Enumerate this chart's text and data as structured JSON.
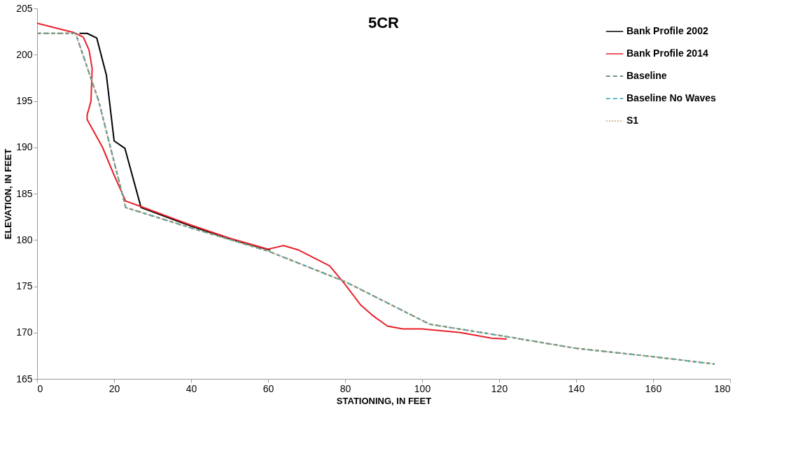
{
  "chart_data": {
    "type": "line",
    "title": "5CR",
    "xlabel": "STATIONING, IN FEET",
    "ylabel": "ELEVATION, IN FEET",
    "xlim": [
      0,
      180
    ],
    "xticks": [
      0,
      20,
      40,
      60,
      80,
      100,
      120,
      140,
      160,
      180
    ],
    "ylim": [
      165,
      205
    ],
    "yticks": [
      165,
      170,
      175,
      180,
      185,
      190,
      195,
      200,
      205
    ],
    "grid": false,
    "legend": "top right",
    "marker": "none",
    "series": [
      {
        "name": "Bank Profile 2002",
        "color": "#000000",
        "line_style": "solid",
        "x": [
          11,
          13,
          15.5,
          18,
          20,
          22.8,
          27,
          40,
          50,
          60.5
        ],
        "values": [
          202.3,
          202.3,
          201.8,
          197.8,
          190.7,
          189.9,
          183.5,
          181.5,
          180.1,
          178.9
        ]
      },
      {
        "name": "Bank Profile 2014",
        "color": "#e8202a",
        "line_style": "solid",
        "x": [
          0,
          9.5,
          12,
          13.5,
          14.3,
          14,
          13,
          13,
          17,
          20,
          23,
          27,
          40,
          50,
          60,
          62,
          64,
          68,
          76,
          80,
          84,
          87,
          91,
          95,
          100,
          110,
          118,
          122
        ],
        "values": [
          203.4,
          202.4,
          201.9,
          200.5,
          198.5,
          195,
          193.5,
          193,
          190,
          187,
          184.2,
          183.6,
          181.6,
          180.2,
          179,
          179.2,
          179.4,
          178.9,
          177.2,
          175.2,
          173,
          171.9,
          170.7,
          170.4,
          170.4,
          170,
          169.4,
          169.3
        ]
      },
      {
        "name": "Baseline",
        "color": "#4f6b5a",
        "line_style": "dashed",
        "x": [
          0,
          10,
          16,
          23,
          40,
          60,
          80,
          102,
          120,
          140,
          160,
          176
        ],
        "values": [
          202.3,
          202.3,
          195,
          183.5,
          181.3,
          178.8,
          175.5,
          170.9,
          169.7,
          168.3,
          167.4,
          166.6
        ]
      },
      {
        "name": "Baseline No Waves",
        "color": "#2aa6b0",
        "line_style": "dashed",
        "x": [
          0,
          10,
          16,
          23,
          40,
          60,
          80,
          102,
          120,
          140,
          160,
          176
        ],
        "values": [
          202.3,
          202.3,
          195,
          183.5,
          181.3,
          178.8,
          175.5,
          170.9,
          169.7,
          168.3,
          167.4,
          166.6
        ]
      },
      {
        "name": "S1",
        "color": "#c8a07a",
        "line_style": "dotted",
        "x": [
          0,
          10,
          16,
          23,
          40,
          60,
          80,
          102,
          120,
          140,
          160,
          176
        ],
        "values": [
          202.3,
          202.3,
          195,
          183.5,
          181.3,
          178.8,
          175.5,
          170.9,
          169.7,
          168.3,
          167.4,
          166.6
        ]
      }
    ]
  }
}
